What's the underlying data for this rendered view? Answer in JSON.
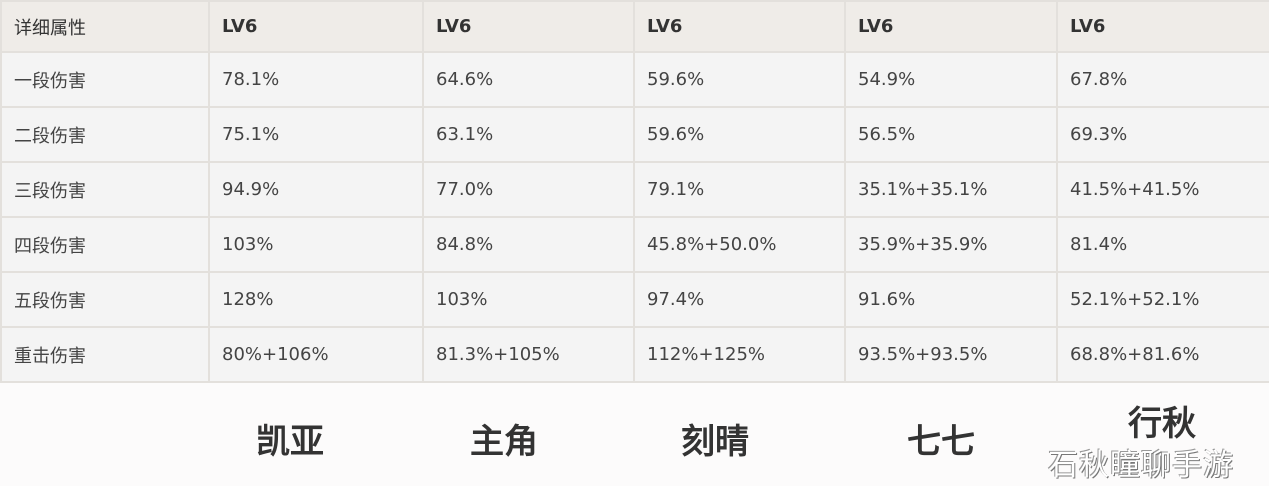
{
  "table": {
    "header": [
      "详细属性",
      "LV6",
      "LV6",
      "LV6",
      "LV6",
      "LV6"
    ],
    "rows": [
      [
        "一段伤害",
        "78.1%",
        "64.6%",
        "59.6%",
        "54.9%",
        "67.8%"
      ],
      [
        "二段伤害",
        "75.1%",
        "63.1%",
        "59.6%",
        "56.5%",
        "69.3%"
      ],
      [
        "三段伤害",
        "94.9%",
        "77.0%",
        "79.1%",
        "35.1%+35.1%",
        "41.5%+41.5%"
      ],
      [
        "四段伤害",
        "103%",
        "84.8%",
        "45.8%+50.0%",
        "35.9%+35.9%",
        "81.4%"
      ],
      [
        "五段伤害",
        "128%",
        "103%",
        "97.4%",
        "91.6%",
        "52.1%+52.1%"
      ],
      [
        "重击伤害",
        "80%+106%",
        "81.3%+105%",
        "112%+125%",
        "93.5%+93.5%",
        "68.8%+81.6%"
      ]
    ]
  },
  "characters": [
    "凯亚",
    "主角",
    "刻晴",
    "七七",
    "行秋"
  ],
  "watermark": "石秋瞳聊手游"
}
